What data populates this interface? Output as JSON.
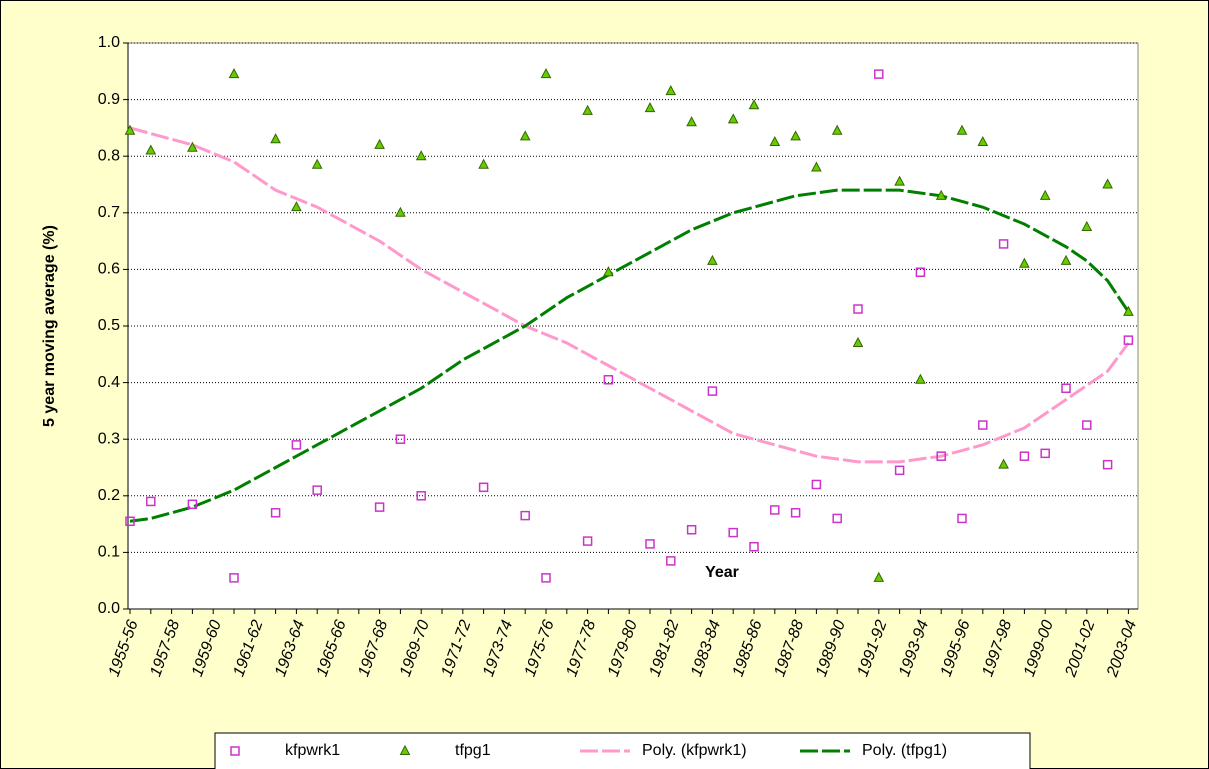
{
  "chart_data": {
    "type": "line",
    "x_label": "Year",
    "y_label": "5 year moving average (%)",
    "categories": [
      "1955-56",
      null,
      "1957-58",
      null,
      "1959-60",
      null,
      "1961-62",
      null,
      "1963-64",
      null,
      "1965-66",
      null,
      "1967-68",
      null,
      "1969-70",
      null,
      "1971-72",
      null,
      "1973-74",
      null,
      "1975-76",
      null,
      "1977-78",
      null,
      "1979-80",
      null,
      "1981-82",
      null,
      "1983-84",
      null,
      "1985-86",
      null,
      "1987-88",
      null,
      "1989-90",
      null,
      "1991-92",
      null,
      "1993-94",
      null,
      "1995-96",
      null,
      "1997-98",
      null,
      "1999-00",
      null,
      "2001-02",
      null,
      "2003-04"
    ],
    "series": [
      {
        "name": "kfpwrk1",
        "color": "#cc33cc",
        "marker": "square",
        "values": [
          0.155,
          0.19,
          null,
          0.185,
          null,
          0.055,
          null,
          0.17,
          0.29,
          0.21,
          null,
          null,
          0.18,
          0.3,
          0.2,
          null,
          null,
          0.215,
          null,
          0.165,
          0.055,
          null,
          0.12,
          0.405,
          null,
          0.115,
          0.085,
          0.14,
          0.385,
          0.135,
          0.11,
          0.175,
          0.17,
          0.22,
          0.16,
          0.53,
          0.945,
          0.245,
          0.595,
          0.27,
          0.16,
          0.325,
          0.645,
          0.27,
          0.275,
          0.39,
          0.325,
          0.255,
          0.475
        ]
      },
      {
        "name": "tfpg1",
        "color": "#66cc00",
        "marker": "triangle",
        "values": [
          0.845,
          0.81,
          null,
          0.815,
          null,
          0.945,
          null,
          0.83,
          0.71,
          0.785,
          null,
          null,
          0.82,
          0.7,
          0.8,
          null,
          null,
          0.785,
          null,
          0.835,
          0.945,
          null,
          0.88,
          0.595,
          null,
          0.885,
          0.915,
          0.86,
          0.615,
          0.865,
          0.89,
          0.825,
          0.835,
          0.78,
          0.845,
          0.47,
          0.055,
          0.755,
          0.405,
          0.73,
          0.845,
          0.825,
          0.255,
          0.61,
          0.73,
          0.615,
          0.675,
          0.75,
          0.525
        ]
      },
      {
        "name": "Poly. (kfpwrk1)",
        "color": "#ff99cc",
        "marker": "dashed",
        "values": [
          0.85,
          0.84,
          0.83,
          0.82,
          0.805,
          0.79,
          0.765,
          0.74,
          0.725,
          0.71,
          0.69,
          0.67,
          0.65,
          0.625,
          0.6,
          0.58,
          0.56,
          0.54,
          0.52,
          0.5,
          0.485,
          0.47,
          0.45,
          0.43,
          0.41,
          0.39,
          0.37,
          0.35,
          0.33,
          0.31,
          0.3,
          0.29,
          0.28,
          0.27,
          0.265,
          0.26,
          0.26,
          0.26,
          0.265,
          0.27,
          0.28,
          0.29,
          0.305,
          0.32,
          0.345,
          0.37,
          0.395,
          0.42,
          0.47
        ]
      },
      {
        "name": "Poly. (tfpg1)",
        "color": "#007f00",
        "marker": "dashed",
        "values": [
          0.155,
          0.16,
          0.17,
          0.18,
          0.195,
          0.21,
          0.23,
          0.25,
          0.27,
          0.29,
          0.31,
          0.33,
          0.35,
          0.37,
          0.39,
          0.415,
          0.44,
          0.46,
          0.48,
          0.5,
          0.525,
          0.55,
          0.57,
          0.59,
          0.61,
          0.63,
          0.65,
          0.67,
          0.685,
          0.7,
          0.71,
          0.72,
          0.73,
          0.735,
          0.74,
          0.74,
          0.74,
          0.74,
          0.735,
          0.73,
          0.72,
          0.71,
          0.695,
          0.68,
          0.66,
          0.64,
          0.615,
          0.58,
          0.525
        ]
      }
    ],
    "ylim": [
      0,
      1
    ],
    "yticks": [
      {
        "value": 0,
        "label": "0.0"
      },
      {
        "value": 0.1,
        "label": "0.1"
      },
      {
        "value": 0.2,
        "label": "0.2"
      },
      {
        "value": 0.3,
        "label": "0.3"
      },
      {
        "value": 0.4,
        "label": "0.4"
      },
      {
        "value": 0.5,
        "label": "0.5"
      },
      {
        "value": 0.6,
        "label": "0.6"
      },
      {
        "value": 0.7,
        "label": "0.7"
      },
      {
        "value": 0.8,
        "label": "0.8"
      },
      {
        "value": 0.9,
        "label": "0.9"
      },
      {
        "value": 1,
        "label": "1.0"
      }
    ],
    "grid": true,
    "legend": "bottom"
  }
}
